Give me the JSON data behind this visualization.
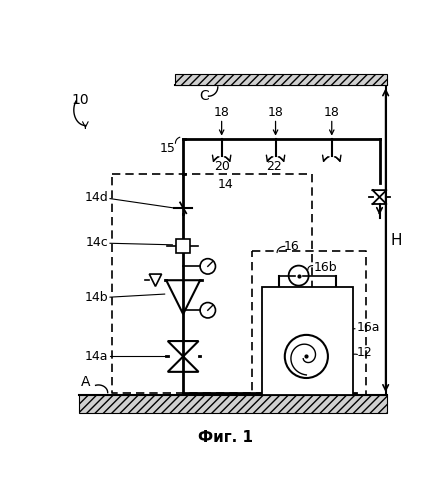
{
  "title": "Фиг. 1",
  "label_10": "10",
  "label_C": "C",
  "label_A": "A",
  "label_H": "H",
  "label_14": "14",
  "label_14a": "14a",
  "label_14b": "14b",
  "label_14c": "14c",
  "label_14d": "14d",
  "label_15": "15",
  "label_16": "16",
  "label_16a": "16a",
  "label_16b": "16b",
  "label_12": "12",
  "label_18": "18",
  "label_20": "20",
  "label_22": "22",
  "bg_color": "#ffffff",
  "line_color": "#000000"
}
